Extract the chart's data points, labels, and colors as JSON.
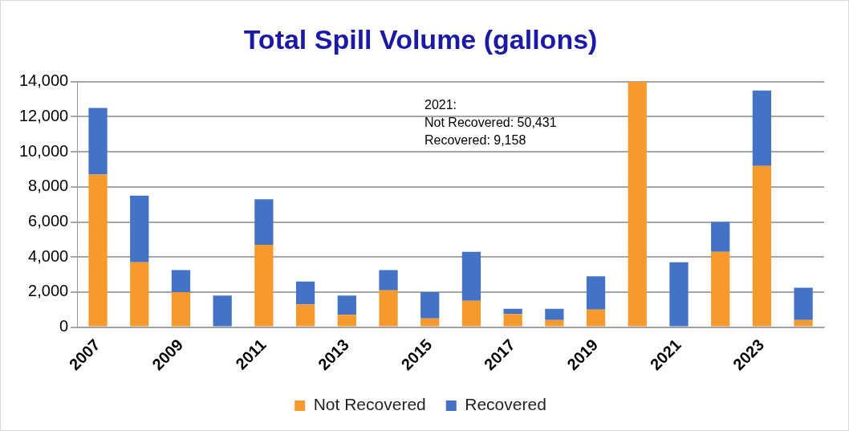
{
  "chart_data": {
    "type": "bar",
    "title": "Total Spill Volume (gallons)",
    "stacked": true,
    "categories": [
      "2007",
      null,
      "2009",
      null,
      "2011",
      null,
      "2013",
      null,
      "2015",
      null,
      "2017",
      null,
      "2019",
      null,
      "2021",
      null,
      "2023",
      null
    ],
    "series": [
      {
        "name": "Not Recovered",
        "color": "#f79a2e",
        "values": [
          8700,
          3700,
          2000,
          null,
          4700,
          1300,
          700,
          2100,
          500,
          1500,
          750,
          400,
          1000,
          14000,
          0,
          4300,
          9200,
          400
        ]
      },
      {
        "name": "Recovered",
        "color": "#4472c4",
        "values": [
          3800,
          3800,
          1250,
          1800,
          2600,
          1300,
          1100,
          1150,
          1500,
          2800,
          300,
          650,
          1900,
          null,
          3700,
          1700,
          4300,
          1850
        ]
      }
    ],
    "ylim": [
      0,
      14000
    ],
    "yticks": [
      {
        "value": 0,
        "label": "0"
      },
      {
        "value": 2000,
        "label": "2,000"
      },
      {
        "value": 4000,
        "label": "4,000"
      },
      {
        "value": 6000,
        "label": "6,000"
      },
      {
        "value": 8000,
        "label": "8,000"
      },
      {
        "value": 10000,
        "label": "10,000"
      },
      {
        "value": 12000,
        "label": "12,000"
      },
      {
        "value": 14000,
        "label": "14,000"
      }
    ],
    "grid": "y",
    "legend": "bottom",
    "annotations": [
      "2021:\nNot Recovered: 50,431\nRecovered: 9,158"
    ]
  }
}
